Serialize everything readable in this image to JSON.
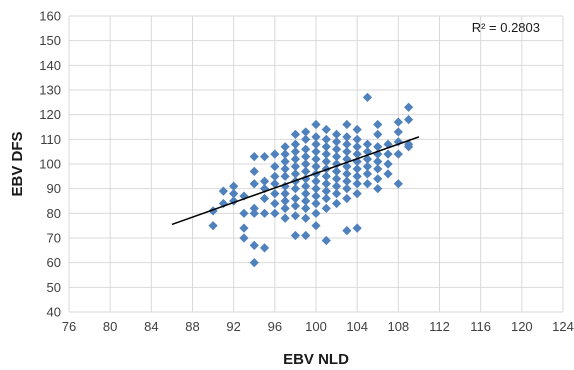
{
  "chart_data": {
    "type": "scatter",
    "title": "",
    "xlabel": "EBV NLD",
    "ylabel": "EBV DFS",
    "xlim": [
      76,
      124
    ],
    "ylim": [
      40,
      160
    ],
    "x_ticks": [
      "76",
      "80",
      "84",
      "88",
      "92",
      "96",
      "100",
      "104",
      "108",
      "112",
      "116",
      "120",
      "124"
    ],
    "y_ticks": [
      "40",
      "50",
      "60",
      "70",
      "80",
      "90",
      "100",
      "110",
      "120",
      "130",
      "140",
      "150",
      "160"
    ],
    "grid": true,
    "legend": "none",
    "colors": {
      "points": "#4f81bd",
      "trendline": "#000000",
      "grid": "#d9d9d9"
    },
    "annotation": "R² = 0.2803",
    "trendline": {
      "type": "linear",
      "x": [
        86,
        110
      ],
      "y": [
        75.5,
        111
      ]
    },
    "series": [
      {
        "points": [
          [
            90,
            75
          ],
          [
            90,
            81
          ],
          [
            91,
            84
          ],
          [
            91,
            89
          ],
          [
            92,
            85
          ],
          [
            92,
            88
          ],
          [
            92,
            91
          ],
          [
            93,
            70
          ],
          [
            93,
            74
          ],
          [
            93,
            80
          ],
          [
            93,
            87
          ],
          [
            94,
            60
          ],
          [
            94,
            67
          ],
          [
            94,
            80
          ],
          [
            94,
            82
          ],
          [
            94,
            92
          ],
          [
            94,
            97
          ],
          [
            94,
            103
          ],
          [
            95,
            66
          ],
          [
            95,
            80
          ],
          [
            95,
            86
          ],
          [
            95,
            90
          ],
          [
            95,
            93
          ],
          [
            95,
            103
          ],
          [
            96,
            80
          ],
          [
            96,
            84
          ],
          [
            96,
            88
          ],
          [
            96,
            92
          ],
          [
            96,
            95
          ],
          [
            96,
            99
          ],
          [
            96,
            104
          ],
          [
            97,
            78
          ],
          [
            97,
            82
          ],
          [
            97,
            85
          ],
          [
            97,
            88
          ],
          [
            97,
            91
          ],
          [
            97,
            95
          ],
          [
            97,
            98
          ],
          [
            97,
            101
          ],
          [
            97,
            104
          ],
          [
            97,
            107
          ],
          [
            98,
            71
          ],
          [
            98,
            79
          ],
          [
            98,
            83
          ],
          [
            98,
            86
          ],
          [
            98,
            90
          ],
          [
            98,
            93
          ],
          [
            98,
            96
          ],
          [
            98,
            99
          ],
          [
            98,
            102
          ],
          [
            98,
            105
          ],
          [
            98,
            108
          ],
          [
            98,
            112
          ],
          [
            99,
            71
          ],
          [
            99,
            78
          ],
          [
            99,
            82
          ],
          [
            99,
            85
          ],
          [
            99,
            88
          ],
          [
            99,
            91
          ],
          [
            99,
            94
          ],
          [
            99,
            97
          ],
          [
            99,
            100
          ],
          [
            99,
            103
          ],
          [
            99,
            106
          ],
          [
            99,
            110
          ],
          [
            99,
            113
          ],
          [
            100,
            75
          ],
          [
            100,
            80
          ],
          [
            100,
            84
          ],
          [
            100,
            87
          ],
          [
            100,
            90
          ],
          [
            100,
            93
          ],
          [
            100,
            96
          ],
          [
            100,
            99
          ],
          [
            100,
            102
          ],
          [
            100,
            105
          ],
          [
            100,
            108
          ],
          [
            100,
            111
          ],
          [
            100,
            116
          ],
          [
            101,
            69
          ],
          [
            101,
            82
          ],
          [
            101,
            86
          ],
          [
            101,
            89
          ],
          [
            101,
            92
          ],
          [
            101,
            95
          ],
          [
            101,
            98
          ],
          [
            101,
            101
          ],
          [
            101,
            104
          ],
          [
            101,
            107
          ],
          [
            101,
            110
          ],
          [
            101,
            114
          ],
          [
            102,
            84
          ],
          [
            102,
            88
          ],
          [
            102,
            91
          ],
          [
            102,
            94
          ],
          [
            102,
            97
          ],
          [
            102,
            100
          ],
          [
            102,
            103
          ],
          [
            102,
            106
          ],
          [
            102,
            109
          ],
          [
            102,
            112
          ],
          [
            103,
            73
          ],
          [
            103,
            86
          ],
          [
            103,
            90
          ],
          [
            103,
            93
          ],
          [
            103,
            96
          ],
          [
            103,
            99
          ],
          [
            103,
            102
          ],
          [
            103,
            105
          ],
          [
            103,
            108
          ],
          [
            103,
            111
          ],
          [
            103,
            116
          ],
          [
            104,
            74
          ],
          [
            104,
            88
          ],
          [
            104,
            92
          ],
          [
            104,
            95
          ],
          [
            104,
            98
          ],
          [
            104,
            101
          ],
          [
            104,
            104
          ],
          [
            104,
            107
          ],
          [
            104,
            110
          ],
          [
            104,
            114
          ],
          [
            105,
            92
          ],
          [
            105,
            96
          ],
          [
            105,
            99
          ],
          [
            105,
            102
          ],
          [
            105,
            105
          ],
          [
            105,
            108
          ],
          [
            105,
            127
          ],
          [
            106,
            90
          ],
          [
            106,
            94
          ],
          [
            106,
            98
          ],
          [
            106,
            101
          ],
          [
            106,
            104
          ],
          [
            106,
            107
          ],
          [
            106,
            112
          ],
          [
            106,
            116
          ],
          [
            107,
            96
          ],
          [
            107,
            100
          ],
          [
            107,
            104
          ],
          [
            107,
            108
          ],
          [
            108,
            92
          ],
          [
            108,
            104
          ],
          [
            108,
            109
          ],
          [
            108,
            113
          ],
          [
            108,
            117
          ],
          [
            109,
            107
          ],
          [
            109,
            108
          ],
          [
            109,
            118
          ],
          [
            109,
            123
          ]
        ]
      }
    ]
  }
}
